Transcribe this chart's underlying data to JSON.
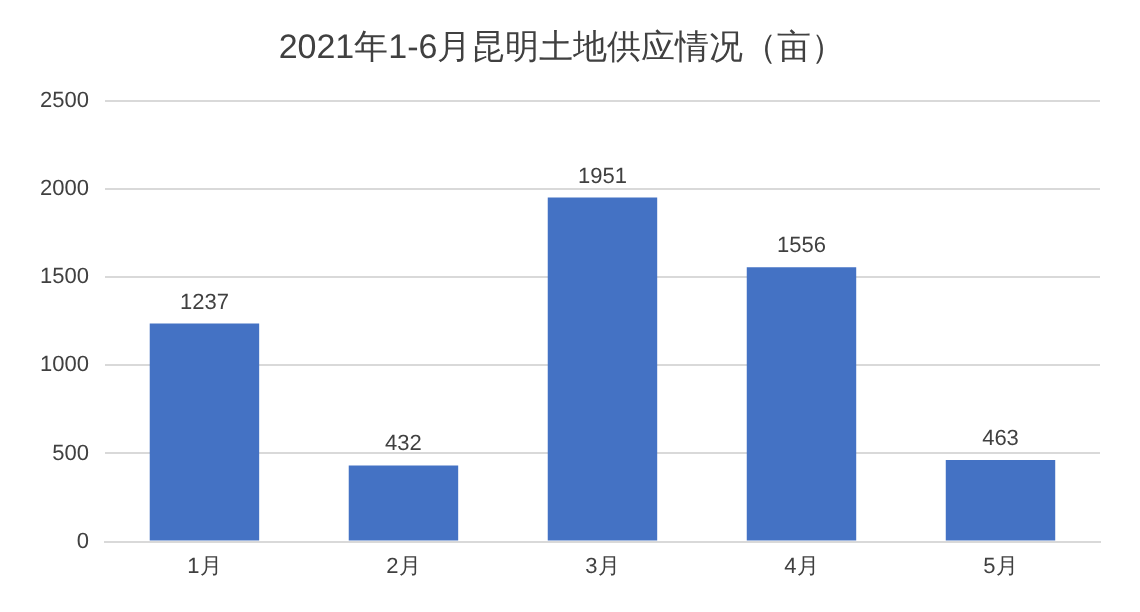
{
  "chart_data": {
    "type": "bar",
    "title": "2021年1-6月昆明土地供应情况（亩）",
    "categories": [
      "1月",
      "2月",
      "3月",
      "4月",
      "5月"
    ],
    "values": [
      1237,
      432,
      1951,
      1556,
      463
    ],
    "color": "#4472c4",
    "ylim": [
      0,
      2500
    ],
    "yticks": [
      0,
      500,
      1000,
      1500,
      2000,
      2500
    ],
    "grid": "y",
    "data_labels": true
  }
}
